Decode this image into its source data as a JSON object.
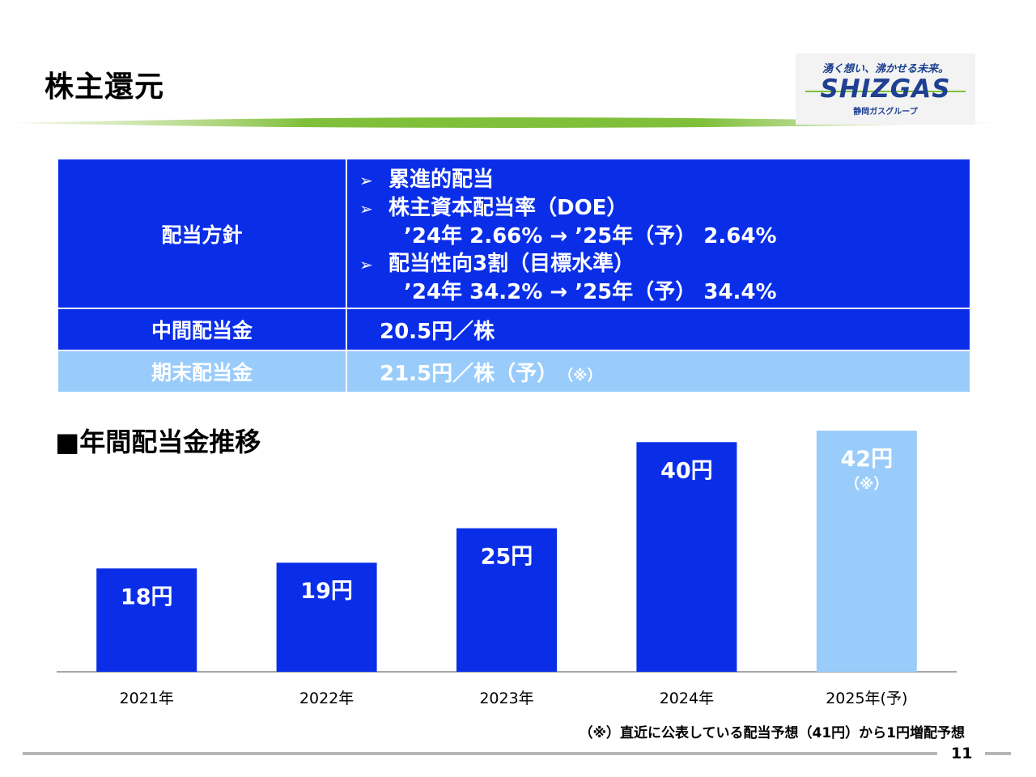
{
  "header": {
    "title": "株主還元"
  },
  "logo": {
    "tagline": "湧く想い、沸かせる未来。",
    "brand": "SHIZGAS",
    "group": "静岡ガスグループ"
  },
  "policy_table": {
    "row1_label": "配当方針",
    "items": [
      {
        "bullet": "➢",
        "text": "累進的配当"
      },
      {
        "bullet": "➢",
        "text": "株主資本配当率（DOE）"
      },
      {
        "bullet": "",
        "text": "’24年 2.66% → ’25年（予） 2.64%"
      },
      {
        "bullet": "➢",
        "text": "配当性向3割（目標水準）"
      },
      {
        "bullet": "",
        "text": "’24年 34.2% → ’25年（予） 34.4%"
      }
    ],
    "row2_label": "中間配当金",
    "row2_value": "20.5円／株",
    "row3_label": "期末配当金",
    "row3_value": "21.5円／株（予）",
    "row3_note": "（※）"
  },
  "chart_title": "■年間配当金推移",
  "chart_data": {
    "type": "bar",
    "title": "■年間配当金推移",
    "categories": [
      "2021年",
      "2022年",
      "2023年",
      "2024年",
      "2025年(予)"
    ],
    "values": [
      18,
      19,
      25,
      40,
      42
    ],
    "data_labels": [
      "18円",
      "19円",
      "25円",
      "40円",
      "42円"
    ],
    "note_labels": [
      "",
      "",
      "",
      "",
      "（※）"
    ],
    "colors": [
      "#0a2ee8",
      "#0a2ee8",
      "#0a2ee8",
      "#0a2ee8",
      "#99ccfb"
    ],
    "label_colors": [
      "#ffffff",
      "#ffffff",
      "#ffffff",
      "#ffffff",
      "#ffffff"
    ],
    "ylim": [
      0,
      43
    ],
    "grid": false
  },
  "footnote": "（※）直近に公表している配当予想（41円）から1円増配予想",
  "page_number": "11",
  "colors": {
    "primary_blue": "#0a2ee8",
    "light_blue": "#99ccfb",
    "accent_green": "#7fbf3a"
  }
}
